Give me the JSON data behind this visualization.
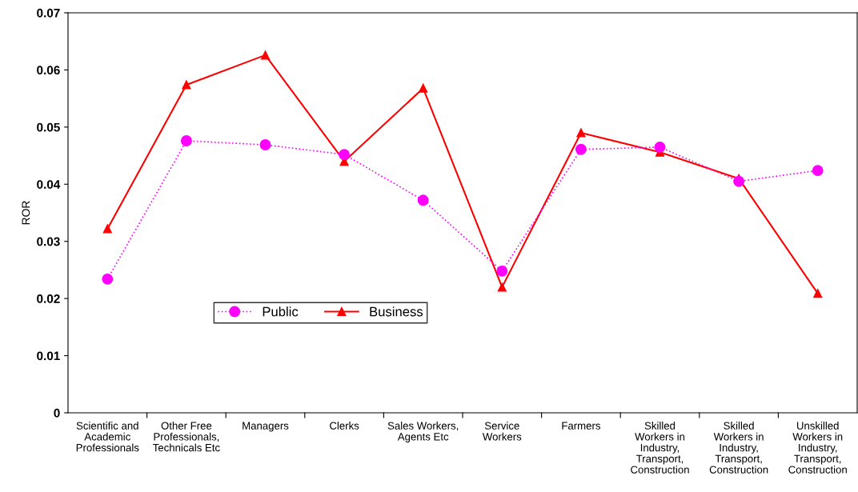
{
  "chart_data": {
    "type": "line",
    "ylabel": "ROR",
    "categories": [
      "Scientific and\nAcademic\nProfessionals",
      "Other Free\nProfessionals,\nTechnicals Etc",
      "Managers",
      "Clerks",
      "Sales Workers,\nAgents Etc",
      "Service\nWorkers",
      "Farmers",
      "Skilled\nWorkers in\nIndustry,\nTransport,\nConstruction",
      "Skilled\nWorkers in\nIndustry,\nTransport,\nConstruction",
      "Unskilled\nWorkers in\nIndustry,\nTransport,\nConstruction"
    ],
    "series": [
      {
        "name": "Public",
        "color": "#ff00ff",
        "marker": "circle",
        "line_style": "dotted",
        "values": [
          0.0234,
          0.0476,
          0.0469,
          0.0452,
          0.0372,
          0.0248,
          0.0461,
          0.0465,
          0.0405,
          0.0424
        ]
      },
      {
        "name": "Business",
        "color": "#ff0000",
        "marker": "triangle",
        "line_style": "solid",
        "values": [
          0.0322,
          0.0574,
          0.0626,
          0.044,
          0.0568,
          0.022,
          0.049,
          0.0456,
          0.041,
          0.0209
        ]
      }
    ],
    "ylim": [
      0,
      0.07
    ],
    "yticks": [
      0,
      0.01,
      0.02,
      0.03,
      0.04,
      0.05,
      0.06,
      0.07
    ],
    "grid": false,
    "legend": "bottom"
  }
}
